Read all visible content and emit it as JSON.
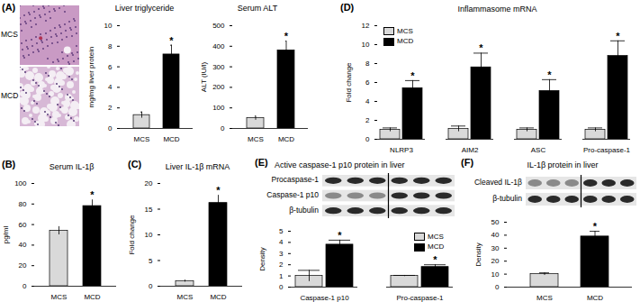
{
  "chart_data": [
    {
      "panel": "(A)",
      "images": [
        "MCS",
        "MCD"
      ],
      "type": "bar",
      "title": "Liver triglyceride",
      "y_label": "mg/mg liver protein",
      "categories": [
        "MCS",
        "MCD"
      ],
      "values": [
        1.3,
        7.2
      ],
      "errors": [
        0.3,
        0.9
      ],
      "colors": [
        "#d9d9d9",
        "#000000"
      ],
      "significance": [
        null,
        "*"
      ],
      "ylim": [
        0,
        10
      ],
      "yticks": [
        0,
        2,
        4,
        6,
        8,
        10
      ]
    },
    {
      "panel": "(A)",
      "type": "bar",
      "title": "Serum ALT",
      "y_label": "ALT (IU/l)",
      "categories": [
        "MCS",
        "MCD"
      ],
      "values": [
        50,
        380
      ],
      "errors": [
        10,
        45
      ],
      "colors": [
        "#d9d9d9",
        "#000000"
      ],
      "significance": [
        null,
        "*"
      ],
      "ylim": [
        0,
        500
      ],
      "yticks": [
        0,
        100,
        200,
        300,
        400,
        500
      ]
    },
    {
      "panel": "(D)",
      "type": "bar",
      "title": "Inflammasome mRNA",
      "y_label": "Fold change",
      "categories": [
        "NLRP3",
        "AIM2",
        "ASC",
        "Pro-caspase-1"
      ],
      "series": [
        {
          "name": "MCS",
          "color": "#d9d9d9",
          "values": [
            1.0,
            1.1,
            1.0,
            1.0
          ],
          "errors": [
            0.2,
            0.3,
            0.2,
            0.2
          ]
        },
        {
          "name": "MCD",
          "color": "#000000",
          "values": [
            5.4,
            7.6,
            5.1,
            8.8
          ],
          "errors": [
            0.8,
            1.5,
            1.2,
            1.6
          ],
          "significance": [
            "*",
            "*",
            "*",
            "*"
          ]
        }
      ],
      "legend": "top-left",
      "ylim": [
        0,
        12
      ],
      "yticks": [
        0,
        2,
        4,
        6,
        8,
        10,
        12
      ]
    },
    {
      "panel": "(B)",
      "type": "bar",
      "title": "Serum IL-1β",
      "y_label": "pg/ml",
      "categories": [
        "MCS",
        "MCD"
      ],
      "values": [
        54,
        78
      ],
      "errors": [
        4,
        6
      ],
      "colors": [
        "#d9d9d9",
        "#000000"
      ],
      "significance": [
        null,
        "*"
      ],
      "ylim": [
        0,
        100
      ],
      "yticks": [
        0,
        20,
        40,
        60,
        80,
        100
      ]
    },
    {
      "panel": "(C)",
      "type": "bar",
      "title": "Liver IL-1β mRNA",
      "y_label": "Fold change",
      "categories": [
        "MCS",
        "MCD"
      ],
      "values": [
        1.0,
        16.2
      ],
      "errors": [
        0.2,
        1.5
      ],
      "colors": [
        "#d9d9d9",
        "#000000"
      ],
      "significance": [
        null,
        "*"
      ],
      "ylim": [
        0,
        20
      ],
      "yticks": [
        0,
        5,
        10,
        15,
        20
      ]
    },
    {
      "panel": "(E)",
      "type": "bar",
      "title": "Active caspase-1 p10 protein in liver",
      "y_label": "Density",
      "blot": {
        "bands": [
          "Procaspase-1",
          "Caspase-1 p10",
          "β-tubulin"
        ]
      },
      "categories": [
        "Caspase-1 p10",
        "Pro-caspase-1"
      ],
      "series": [
        {
          "name": "MCS",
          "color": "#d9d9d9",
          "values": [
            1.0,
            1.0
          ],
          "errors": [
            0.5,
            0.05
          ]
        },
        {
          "name": "MCD",
          "color": "#000000",
          "values": [
            3.8,
            1.8
          ],
          "errors": [
            0.4,
            0.2
          ],
          "significance": [
            "*",
            "*"
          ]
        }
      ],
      "legend": "top-right",
      "ylim": [
        0,
        5
      ],
      "yticks": [
        0,
        1,
        2,
        3,
        4,
        5
      ]
    },
    {
      "panel": "(F)",
      "type": "bar",
      "title": "IL-1β protein in liver",
      "y_label": "Density",
      "blot": {
        "bands": [
          "Cleaved IL-1β",
          "β-tubulin"
        ]
      },
      "categories": [
        "MCS",
        "MCD"
      ],
      "values": [
        10,
        39
      ],
      "errors": [
        1,
        4
      ],
      "colors": [
        "#d9d9d9",
        "#000000"
      ],
      "significance": [
        null,
        "*"
      ],
      "ylim": [
        0,
        50
      ],
      "yticks": [
        0,
        10,
        20,
        30,
        40,
        50
      ]
    }
  ]
}
